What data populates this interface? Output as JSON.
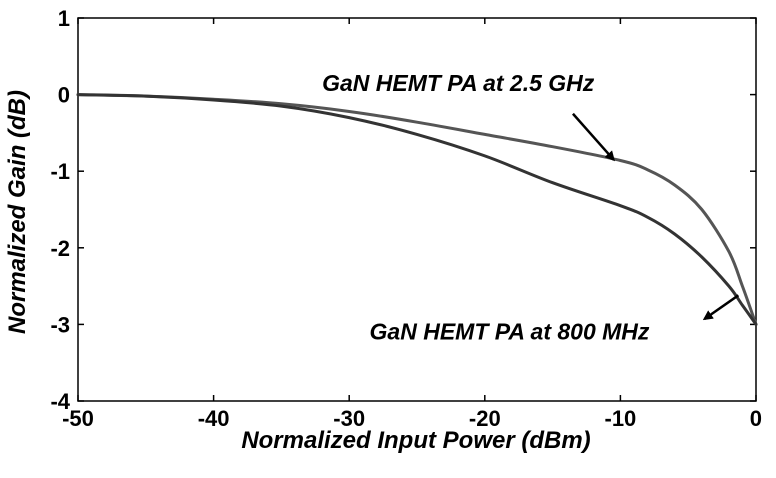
{
  "chart_data": {
    "type": "line",
    "title": "",
    "xlabel": "Normalized Input Power (dBm)",
    "ylabel": "Normalized Gain (dB)",
    "xlim": [
      -50,
      0
    ],
    "ylim": [
      -4,
      1
    ],
    "xticks": [
      -50,
      -40,
      -30,
      -20,
      -10,
      0
    ],
    "yticks": [
      1,
      0,
      -1,
      -2,
      -3,
      -4
    ],
    "xtick_labels": [
      "-50",
      "-40",
      "-30",
      "-20",
      "-10",
      "0"
    ],
    "ytick_labels": [
      "1",
      "0",
      "-1",
      "-2",
      "-3",
      "-4"
    ],
    "grid": false,
    "legend": "none",
    "series": [
      {
        "name": "GaN HEMT PA at 2.5 GHz",
        "color": "#555555",
        "x": [
          -50,
          -45,
          -40,
          -35,
          -30,
          -25,
          -20,
          -15,
          -10,
          -8,
          -6,
          -4,
          -2,
          -1,
          0
        ],
        "y": [
          0,
          -0.02,
          -0.06,
          -0.12,
          -0.22,
          -0.36,
          -0.52,
          -0.68,
          -0.86,
          -0.98,
          -1.18,
          -1.5,
          -2.05,
          -2.5,
          -3.0
        ]
      },
      {
        "name": "GaN HEMT PA at 800 MHz",
        "color": "#333333",
        "x": [
          -50,
          -45,
          -40,
          -35,
          -30,
          -25,
          -20,
          -15,
          -10,
          -8,
          -6,
          -4,
          -2,
          -1,
          0
        ],
        "y": [
          0,
          -0.02,
          -0.07,
          -0.15,
          -0.3,
          -0.52,
          -0.8,
          -1.15,
          -1.45,
          -1.6,
          -1.82,
          -2.12,
          -2.5,
          -2.75,
          -3.0
        ]
      }
    ],
    "annotations": [
      {
        "text": "GaN HEMT PA at 2.5 GHz",
        "label_x": -32,
        "label_y": 0.05,
        "arrow_from": [
          -13.5,
          -0.25
        ],
        "arrow_to": [
          -10.5,
          -0.85
        ]
      },
      {
        "text": "GaN HEMT PA at 800 MHz",
        "label_x": -28.5,
        "label_y": -3.2,
        "arrow_from": [
          -1.3,
          -2.62
        ],
        "arrow_to": [
          -3.8,
          -2.93
        ]
      }
    ]
  }
}
